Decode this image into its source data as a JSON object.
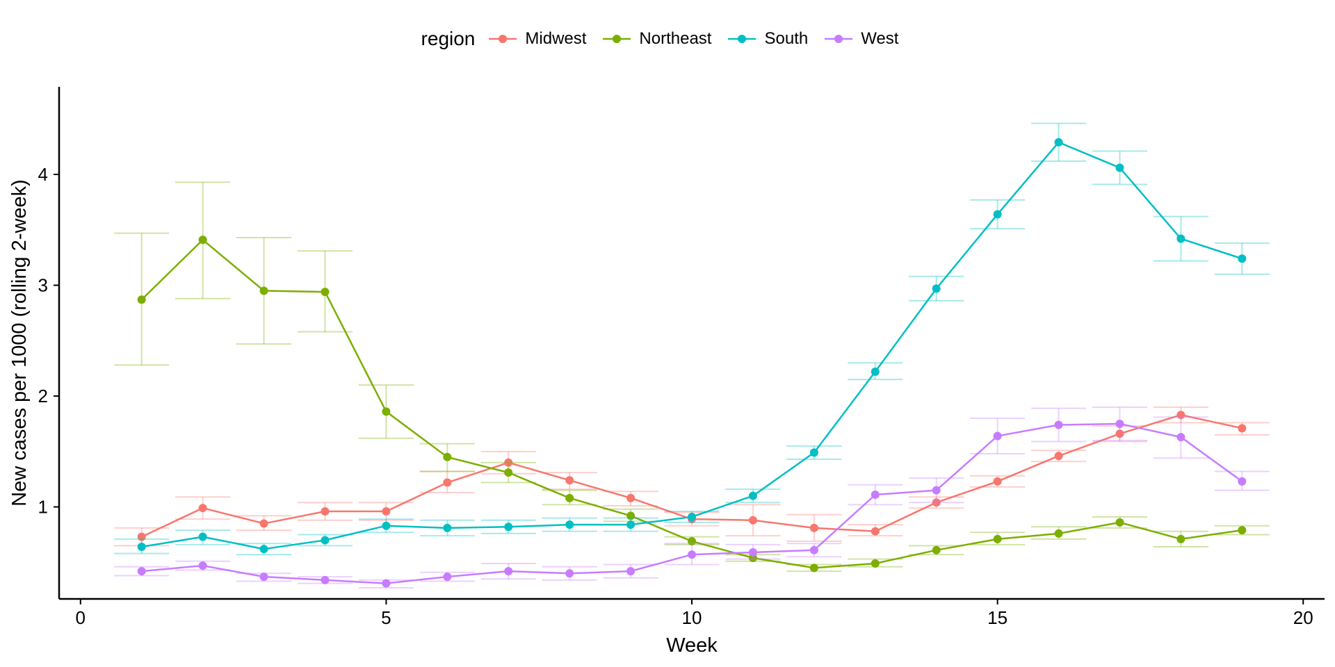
{
  "chart_data": {
    "type": "line",
    "title": "",
    "xlabel": "Week",
    "ylabel": "New cases per 1000 (rolling 2-week)",
    "xlim": [
      -0.35,
      20.35
    ],
    "ylim": [
      0.17,
      4.79
    ],
    "x_ticks": [
      0,
      5,
      10,
      15,
      20
    ],
    "y_ticks": [
      1,
      2,
      3,
      4
    ],
    "grid": false,
    "error_bars": true,
    "legend": {
      "title": "region",
      "position": "top"
    },
    "x": [
      1,
      2,
      3,
      4,
      5,
      6,
      7,
      8,
      9,
      10,
      11,
      12,
      13,
      14,
      15,
      16,
      17,
      18,
      19
    ],
    "series": [
      {
        "name": "Midwest",
        "color": "#F8766D",
        "values": [
          0.73,
          0.99,
          0.85,
          0.96,
          0.96,
          1.22,
          1.4,
          1.24,
          1.08,
          0.89,
          0.88,
          0.81,
          0.78,
          1.04,
          1.23,
          1.46,
          1.66,
          1.83,
          1.71
        ],
        "lower": [
          0.65,
          0.89,
          0.79,
          0.88,
          0.88,
          1.13,
          1.3,
          1.16,
          1.01,
          0.83,
          0.74,
          0.69,
          0.74,
          0.99,
          1.18,
          1.41,
          1.59,
          1.76,
          1.65
        ],
        "upper": [
          0.81,
          1.09,
          0.92,
          1.04,
          1.04,
          1.32,
          1.5,
          1.31,
          1.14,
          0.95,
          1.02,
          0.93,
          0.84,
          1.09,
          1.28,
          1.51,
          1.73,
          1.9,
          1.76
        ]
      },
      {
        "name": "Northeast",
        "color": "#7CAE00",
        "values": [
          2.87,
          3.41,
          2.95,
          2.94,
          1.86,
          1.45,
          1.31,
          1.08,
          0.92,
          0.69,
          0.54,
          0.45,
          0.49,
          0.61,
          0.71,
          0.76,
          0.86,
          0.71,
          0.79
        ],
        "lower": [
          2.28,
          2.88,
          2.47,
          2.58,
          1.62,
          1.32,
          1.22,
          1.02,
          0.87,
          0.66,
          0.51,
          0.42,
          0.46,
          0.57,
          0.66,
          0.71,
          0.81,
          0.64,
          0.75
        ],
        "upper": [
          3.47,
          3.93,
          3.43,
          3.31,
          2.1,
          1.57,
          1.4,
          1.15,
          0.98,
          0.73,
          0.57,
          0.48,
          0.53,
          0.65,
          0.77,
          0.82,
          0.91,
          0.78,
          0.83
        ]
      },
      {
        "name": "South",
        "color": "#00BFC4",
        "values": [
          0.64,
          0.73,
          0.62,
          0.7,
          0.83,
          0.81,
          0.82,
          0.84,
          0.84,
          0.91,
          1.1,
          1.49,
          2.22,
          2.97,
          3.64,
          4.29,
          4.06,
          3.42,
          3.24
        ],
        "lower": [
          0.58,
          0.66,
          0.57,
          0.65,
          0.77,
          0.74,
          0.76,
          0.78,
          0.78,
          0.86,
          1.04,
          1.43,
          2.15,
          2.86,
          3.51,
          4.12,
          3.91,
          3.22,
          3.1
        ],
        "upper": [
          0.71,
          0.79,
          0.67,
          0.75,
          0.89,
          0.88,
          0.88,
          0.9,
          0.9,
          0.96,
          1.16,
          1.55,
          2.3,
          3.08,
          3.77,
          4.46,
          4.21,
          3.62,
          3.38
        ]
      },
      {
        "name": "West",
        "color": "#C77CFF",
        "values": [
          0.42,
          0.47,
          0.37,
          0.34,
          0.31,
          0.37,
          0.42,
          0.4,
          0.42,
          0.57,
          0.59,
          0.61,
          1.11,
          1.15,
          1.64,
          1.74,
          1.75,
          1.63,
          1.23
        ],
        "lower": [
          0.38,
          0.43,
          0.33,
          0.31,
          0.27,
          0.33,
          0.35,
          0.34,
          0.36,
          0.48,
          0.53,
          0.55,
          1.02,
          1.04,
          1.48,
          1.59,
          1.6,
          1.44,
          1.15
        ],
        "upper": [
          0.46,
          0.51,
          0.4,
          0.37,
          0.34,
          0.41,
          0.49,
          0.46,
          0.48,
          0.67,
          0.66,
          0.67,
          1.2,
          1.26,
          1.8,
          1.89,
          1.9,
          1.81,
          1.32
        ]
      }
    ]
  }
}
